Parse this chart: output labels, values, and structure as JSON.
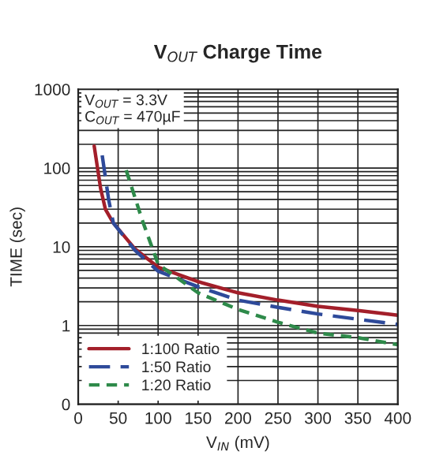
{
  "chart_data": {
    "type": "line",
    "title": "V$_{OUT}$ Charge Time",
    "xlabel": "V$_{IN}$ (mV)",
    "ylabel": "TIME (sec)",
    "annotations": [
      "V$_{OUT}$ = 3.3V\nC$_{OUT}$ = 470µF"
    ],
    "series": [
      {
        "name": "1:100 Ratio",
        "color": "#a31f2a",
        "line_style": "solid",
        "x": [
          20,
          28,
          34,
          44,
          71,
          100,
          150,
          200,
          250,
          300,
          350,
          400
        ],
        "values": [
          190,
          55,
          30,
          20,
          9.4,
          5.5,
          3.6,
          2.6,
          2.1,
          1.75,
          1.55,
          1.35
        ]
      },
      {
        "name": "1:50 Ratio",
        "color": "#2e4a9a",
        "line_style": "dashed",
        "x": [
          30,
          38,
          44,
          71,
          100,
          150,
          200,
          250,
          300,
          350,
          400
        ],
        "values": [
          145,
          40,
          20,
          9,
          4.9,
          3.1,
          2.1,
          1.7,
          1.4,
          1.2,
          1.03
        ]
      },
      {
        "name": "1:20 Ratio",
        "color": "#2e8a4a",
        "line_style": "dotted",
        "x": [
          60,
          80,
          100,
          150,
          200,
          250,
          300,
          350,
          400
        ],
        "values": [
          94,
          22,
          6,
          2.6,
          1.6,
          1.1,
          0.8,
          0.7,
          0.57
        ]
      }
    ],
    "log": "y",
    "xlim": [
      0,
      400
    ],
    "xticks": [
      0,
      50,
      100,
      150,
      200,
      250,
      300,
      350,
      400
    ],
    "ylim": [
      0.1,
      1000
    ],
    "yticks": [
      {
        "value": 0.1,
        "label": "0"
      },
      1,
      10,
      100,
      1000
    ],
    "grid": true,
    "legend": "bottom left"
  }
}
